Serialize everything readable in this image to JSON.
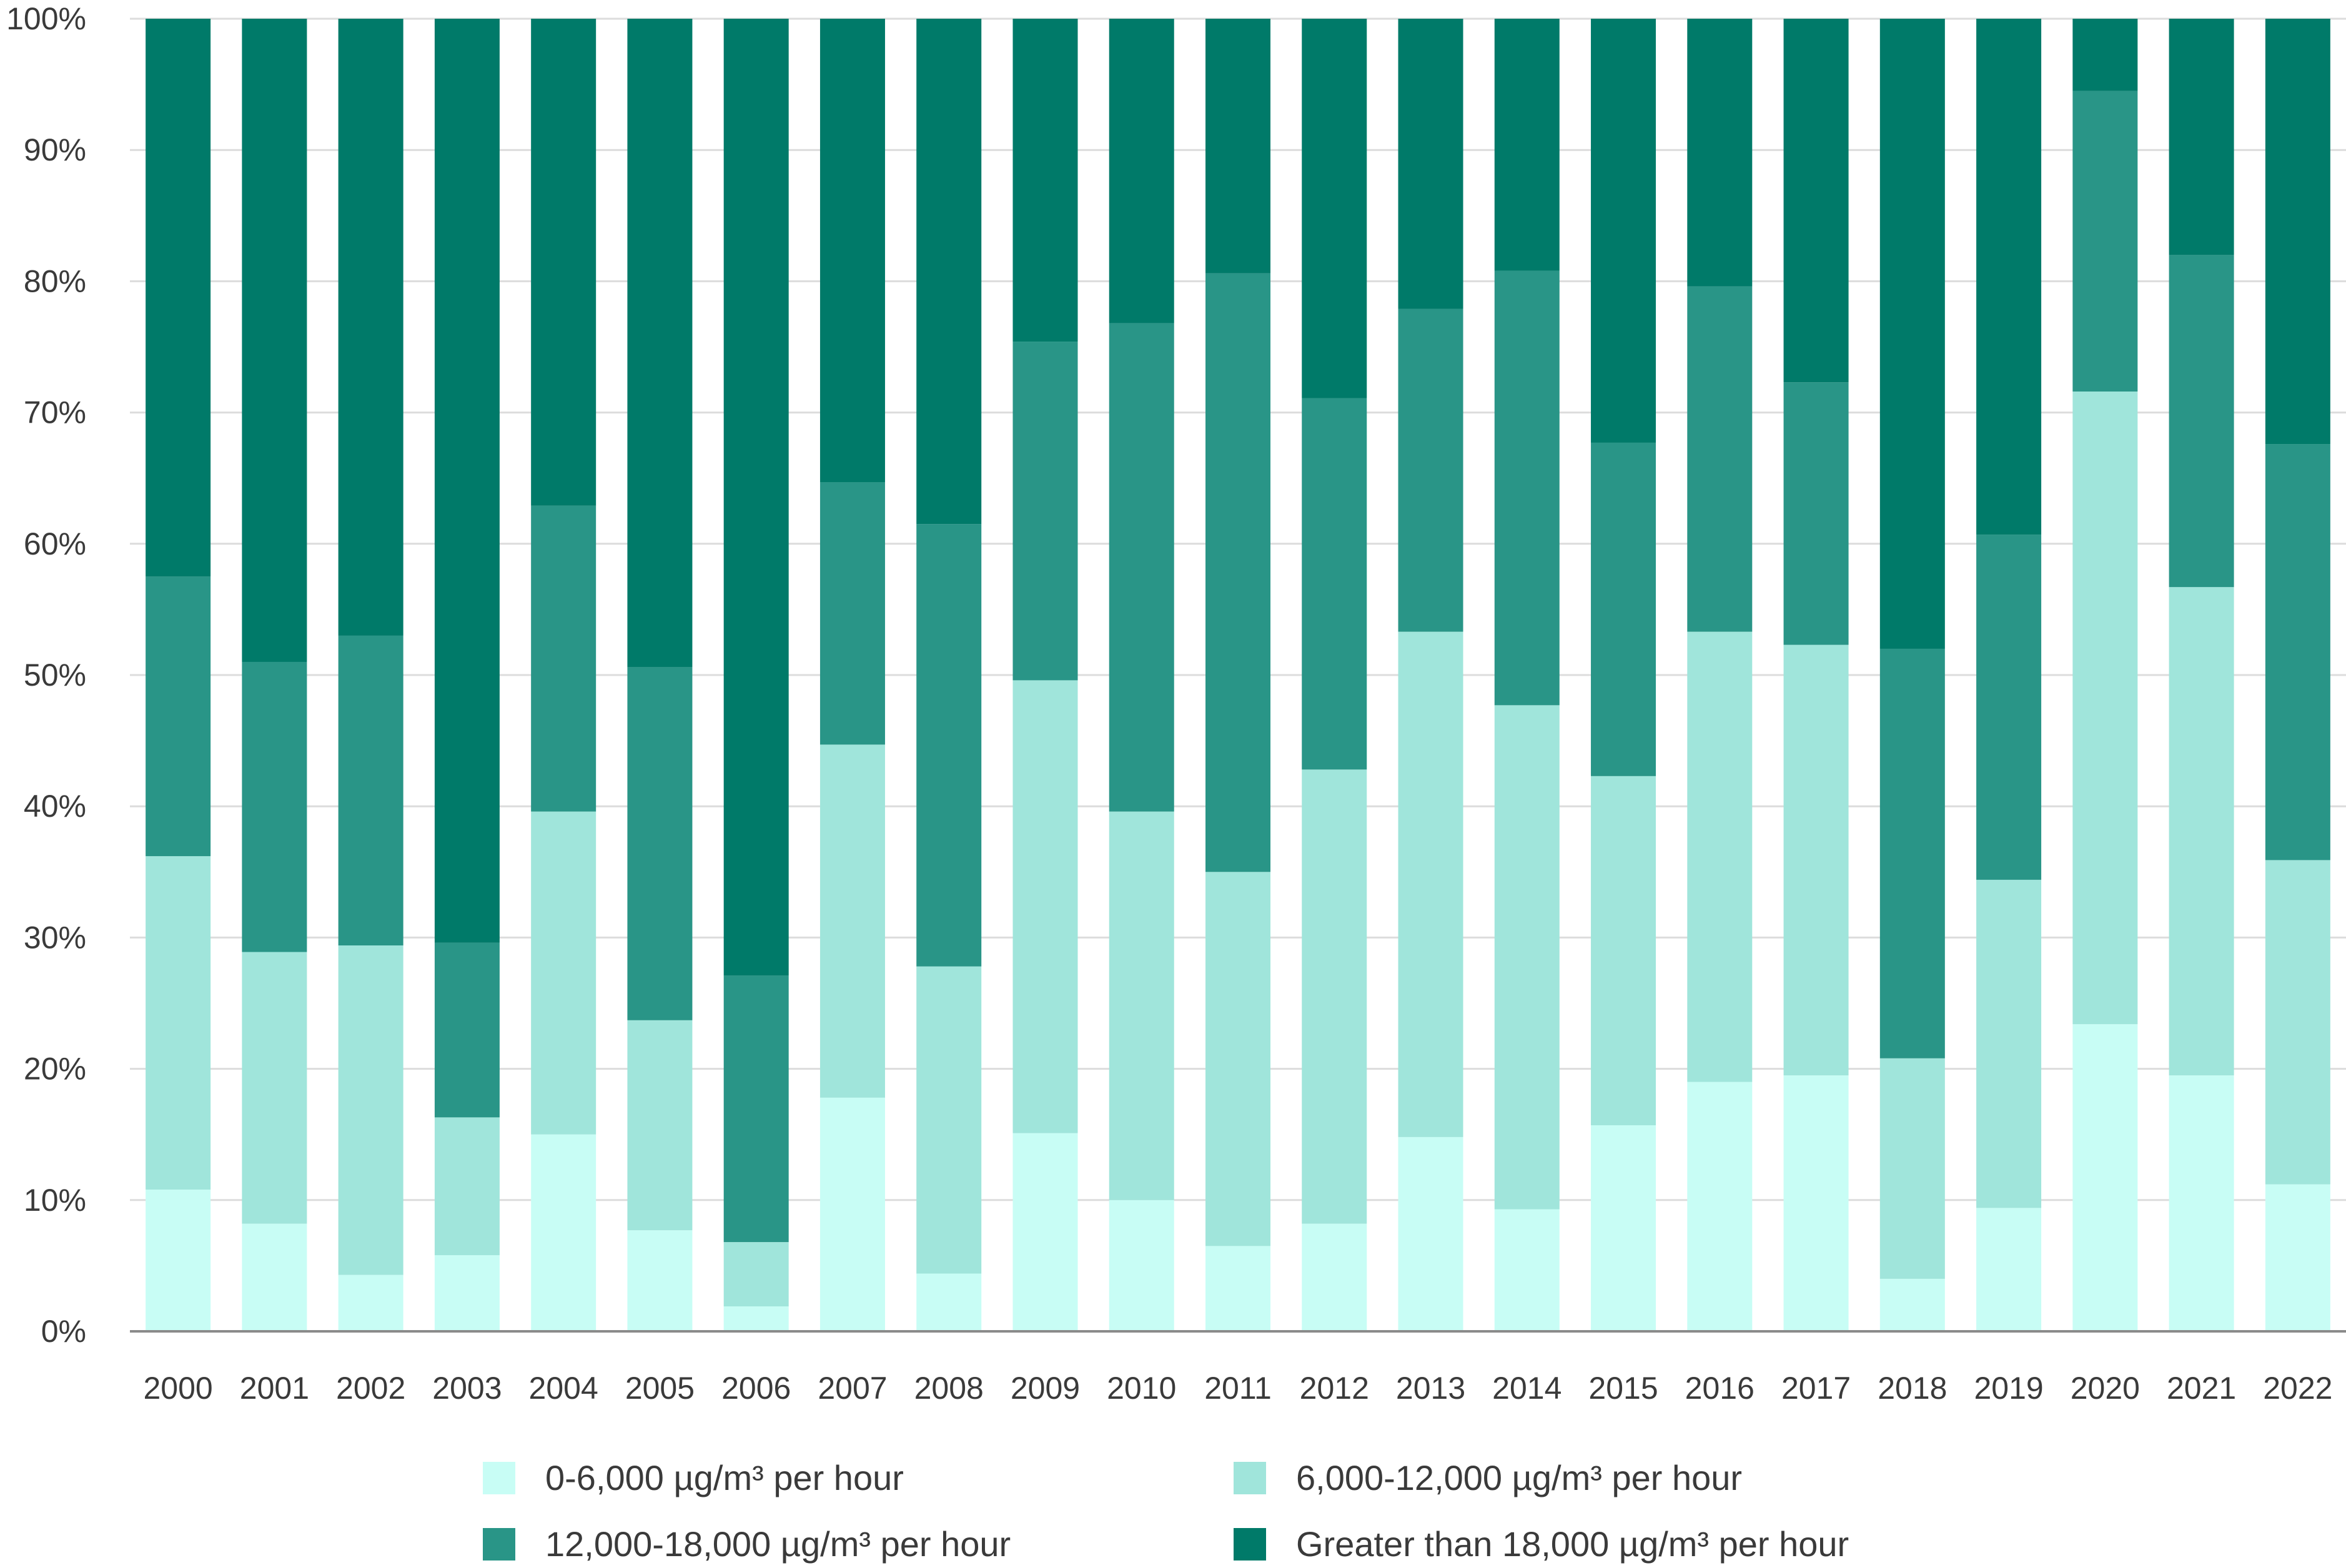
{
  "chart_data": {
    "type": "bar",
    "stacked": true,
    "percent_stacked": true,
    "categories": [
      "2000",
      "2001",
      "2002",
      "2003",
      "2004",
      "2005",
      "2006",
      "2007",
      "2008",
      "2009",
      "2010",
      "2011",
      "2012",
      "2013",
      "2014",
      "2015",
      "2016",
      "2017",
      "2018",
      "2019",
      "2020",
      "2021",
      "2022"
    ],
    "series": [
      {
        "name": "0-6,000 µg/m³ per hour",
        "color": "#c8fdf5",
        "values": [
          10.8,
          8.2,
          4.3,
          5.8,
          15.0,
          7.7,
          1.9,
          17.8,
          4.4,
          15.1,
          10.0,
          6.5,
          8.2,
          14.8,
          9.3,
          15.7,
          19.0,
          19.5,
          4.0,
          9.4,
          23.4,
          19.5,
          11.2
        ]
      },
      {
        "name": "6,000-12,000 µg/m³ per hour",
        "color": "#a0e5db",
        "values": [
          25.4,
          20.7,
          25.1,
          10.5,
          24.6,
          16.0,
          4.9,
          26.9,
          23.4,
          34.5,
          29.6,
          28.5,
          34.6,
          38.5,
          38.4,
          26.6,
          34.3,
          32.8,
          16.8,
          25.0,
          48.2,
          37.2,
          24.7
        ]
      },
      {
        "name": "12,000-18,000 µg/m³ per hour",
        "color": "#299587",
        "values": [
          21.3,
          22.1,
          23.6,
          13.3,
          23.3,
          26.9,
          20.3,
          20.0,
          33.7,
          25.8,
          37.2,
          45.6,
          28.3,
          24.6,
          33.1,
          25.4,
          26.3,
          20.0,
          31.2,
          26.3,
          22.9,
          25.3,
          31.7
        ]
      },
      {
        "name": "Greater than 18,000 µg/m³ per hour",
        "color": "#007a69",
        "values": [
          42.5,
          49.0,
          47.0,
          70.4,
          37.1,
          49.4,
          72.9,
          35.3,
          38.5,
          24.6,
          23.2,
          19.4,
          28.9,
          22.1,
          19.2,
          32.3,
          20.4,
          27.7,
          48.0,
          39.3,
          5.5,
          18.0,
          32.4
        ]
      }
    ],
    "y_ticks": [
      "0%",
      "10%",
      "20%",
      "30%",
      "40%",
      "50%",
      "60%",
      "70%",
      "80%",
      "90%",
      "100%"
    ],
    "ylim": [
      0,
      100
    ],
    "grid": true,
    "legend_position": "bottom",
    "title": "",
    "xlabel": "",
    "ylabel": ""
  }
}
